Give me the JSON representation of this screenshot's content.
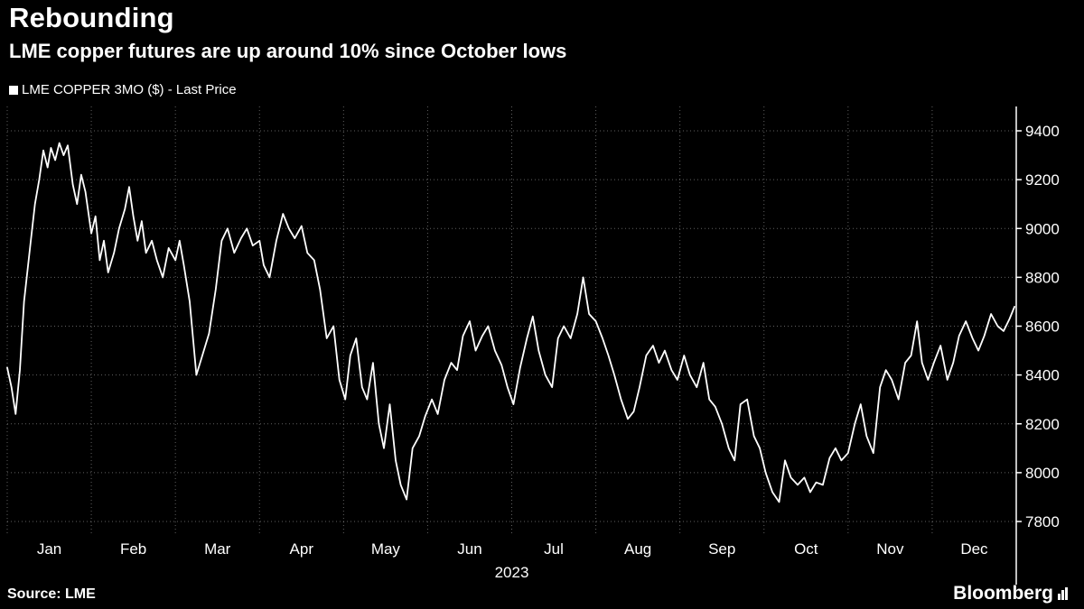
{
  "header": {
    "title": "Rebounding",
    "subtitle": "LME copper futures are up around 10% since October lows"
  },
  "legend": {
    "swatch": "square-swatch",
    "label": "LME COPPER 3MO ($) - Last Price"
  },
  "footer": {
    "source": "Source: LME",
    "brand": "Bloomberg"
  },
  "colors": {
    "background": "#000000",
    "line": "#ffffff",
    "grid": "rgba(255,255,255,0.38)",
    "text": "#ffffff"
  },
  "chart_data": {
    "type": "line",
    "title": "Rebounding",
    "subtitle": "LME copper futures are up around 10% since October lows",
    "legend_entries": [
      "LME COPPER 3MO ($) - Last Price"
    ],
    "legend_position": "top-left",
    "grid": "dotted",
    "y_axis_side": "right",
    "xlabel": "2023",
    "x_tick_labels": [
      "Jan",
      "Feb",
      "Mar",
      "Apr",
      "May",
      "Jun",
      "Jul",
      "Aug",
      "Sep",
      "Oct",
      "Nov",
      "Dec"
    ],
    "y_ticks": [
      7800,
      8000,
      8200,
      8400,
      8600,
      8800,
      9000,
      9200,
      9400
    ],
    "ylim": [
      7750,
      9500
    ],
    "xlim_months": [
      0,
      12
    ],
    "series": [
      {
        "name": "LME COPPER 3MO ($) - Last Price",
        "units": "USD per tonne",
        "points": [
          [
            0.0,
            8430
          ],
          [
            0.05,
            8350
          ],
          [
            0.1,
            8240
          ],
          [
            0.15,
            8420
          ],
          [
            0.2,
            8700
          ],
          [
            0.28,
            8950
          ],
          [
            0.33,
            9100
          ],
          [
            0.38,
            9200
          ],
          [
            0.43,
            9320
          ],
          [
            0.48,
            9250
          ],
          [
            0.52,
            9330
          ],
          [
            0.57,
            9280
          ],
          [
            0.62,
            9350
          ],
          [
            0.67,
            9300
          ],
          [
            0.72,
            9340
          ],
          [
            0.78,
            9180
          ],
          [
            0.83,
            9100
          ],
          [
            0.88,
            9220
          ],
          [
            0.93,
            9150
          ],
          [
            1.0,
            8980
          ],
          [
            1.05,
            9050
          ],
          [
            1.1,
            8870
          ],
          [
            1.15,
            8950
          ],
          [
            1.2,
            8820
          ],
          [
            1.27,
            8900
          ],
          [
            1.33,
            9000
          ],
          [
            1.4,
            9080
          ],
          [
            1.45,
            9170
          ],
          [
            1.5,
            9050
          ],
          [
            1.55,
            8950
          ],
          [
            1.6,
            9030
          ],
          [
            1.65,
            8900
          ],
          [
            1.72,
            8950
          ],
          [
            1.78,
            8870
          ],
          [
            1.85,
            8800
          ],
          [
            1.92,
            8920
          ],
          [
            2.0,
            8870
          ],
          [
            2.05,
            8950
          ],
          [
            2.1,
            8850
          ],
          [
            2.17,
            8700
          ],
          [
            2.25,
            8400
          ],
          [
            2.32,
            8480
          ],
          [
            2.4,
            8570
          ],
          [
            2.48,
            8750
          ],
          [
            2.55,
            8950
          ],
          [
            2.62,
            9000
          ],
          [
            2.7,
            8900
          ],
          [
            2.78,
            8960
          ],
          [
            2.85,
            9000
          ],
          [
            2.92,
            8930
          ],
          [
            3.0,
            8950
          ],
          [
            3.05,
            8850
          ],
          [
            3.12,
            8800
          ],
          [
            3.2,
            8950
          ],
          [
            3.28,
            9060
          ],
          [
            3.35,
            9000
          ],
          [
            3.42,
            8960
          ],
          [
            3.5,
            9010
          ],
          [
            3.57,
            8900
          ],
          [
            3.65,
            8870
          ],
          [
            3.72,
            8750
          ],
          [
            3.8,
            8550
          ],
          [
            3.88,
            8600
          ],
          [
            3.95,
            8380
          ],
          [
            4.02,
            8300
          ],
          [
            4.08,
            8480
          ],
          [
            4.15,
            8550
          ],
          [
            4.22,
            8350
          ],
          [
            4.28,
            8300
          ],
          [
            4.35,
            8450
          ],
          [
            4.42,
            8200
          ],
          [
            4.48,
            8100
          ],
          [
            4.55,
            8280
          ],
          [
            4.62,
            8050
          ],
          [
            4.68,
            7950
          ],
          [
            4.75,
            7890
          ],
          [
            4.82,
            8100
          ],
          [
            4.9,
            8150
          ],
          [
            4.97,
            8230
          ],
          [
            5.05,
            8300
          ],
          [
            5.12,
            8240
          ],
          [
            5.2,
            8380
          ],
          [
            5.28,
            8450
          ],
          [
            5.35,
            8420
          ],
          [
            5.42,
            8560
          ],
          [
            5.5,
            8620
          ],
          [
            5.57,
            8500
          ],
          [
            5.65,
            8560
          ],
          [
            5.72,
            8600
          ],
          [
            5.8,
            8500
          ],
          [
            5.88,
            8440
          ],
          [
            5.95,
            8350
          ],
          [
            6.02,
            8280
          ],
          [
            6.1,
            8430
          ],
          [
            6.18,
            8550
          ],
          [
            6.25,
            8640
          ],
          [
            6.32,
            8500
          ],
          [
            6.4,
            8400
          ],
          [
            6.48,
            8350
          ],
          [
            6.55,
            8550
          ],
          [
            6.62,
            8600
          ],
          [
            6.7,
            8550
          ],
          [
            6.78,
            8650
          ],
          [
            6.85,
            8800
          ],
          [
            6.92,
            8650
          ],
          [
            7.0,
            8620
          ],
          [
            7.08,
            8550
          ],
          [
            7.15,
            8480
          ],
          [
            7.22,
            8400
          ],
          [
            7.3,
            8300
          ],
          [
            7.38,
            8220
          ],
          [
            7.45,
            8250
          ],
          [
            7.52,
            8350
          ],
          [
            7.6,
            8480
          ],
          [
            7.68,
            8520
          ],
          [
            7.75,
            8450
          ],
          [
            7.82,
            8500
          ],
          [
            7.9,
            8420
          ],
          [
            7.97,
            8380
          ],
          [
            8.05,
            8480
          ],
          [
            8.12,
            8400
          ],
          [
            8.2,
            8350
          ],
          [
            8.28,
            8450
          ],
          [
            8.35,
            8300
          ],
          [
            8.42,
            8270
          ],
          [
            8.5,
            8200
          ],
          [
            8.58,
            8100
          ],
          [
            8.65,
            8050
          ],
          [
            8.72,
            8280
          ],
          [
            8.8,
            8300
          ],
          [
            8.88,
            8150
          ],
          [
            8.95,
            8100
          ],
          [
            9.02,
            8000
          ],
          [
            9.1,
            7920
          ],
          [
            9.18,
            7880
          ],
          [
            9.25,
            8050
          ],
          [
            9.32,
            7980
          ],
          [
            9.4,
            7950
          ],
          [
            9.48,
            7980
          ],
          [
            9.55,
            7920
          ],
          [
            9.62,
            7960
          ],
          [
            9.7,
            7950
          ],
          [
            9.78,
            8060
          ],
          [
            9.85,
            8100
          ],
          [
            9.92,
            8050
          ],
          [
            10.0,
            8080
          ],
          [
            10.08,
            8200
          ],
          [
            10.15,
            8280
          ],
          [
            10.22,
            8150
          ],
          [
            10.3,
            8080
          ],
          [
            10.38,
            8350
          ],
          [
            10.45,
            8420
          ],
          [
            10.52,
            8380
          ],
          [
            10.6,
            8300
          ],
          [
            10.68,
            8450
          ],
          [
            10.75,
            8480
          ],
          [
            10.82,
            8620
          ],
          [
            10.88,
            8450
          ],
          [
            10.95,
            8380
          ],
          [
            11.02,
            8450
          ],
          [
            11.1,
            8520
          ],
          [
            11.18,
            8380
          ],
          [
            11.25,
            8450
          ],
          [
            11.32,
            8560
          ],
          [
            11.4,
            8620
          ],
          [
            11.48,
            8550
          ],
          [
            11.55,
            8500
          ],
          [
            11.62,
            8560
          ],
          [
            11.7,
            8650
          ],
          [
            11.78,
            8600
          ],
          [
            11.85,
            8580
          ],
          [
            11.92,
            8630
          ],
          [
            11.98,
            8680
          ]
        ]
      }
    ]
  }
}
